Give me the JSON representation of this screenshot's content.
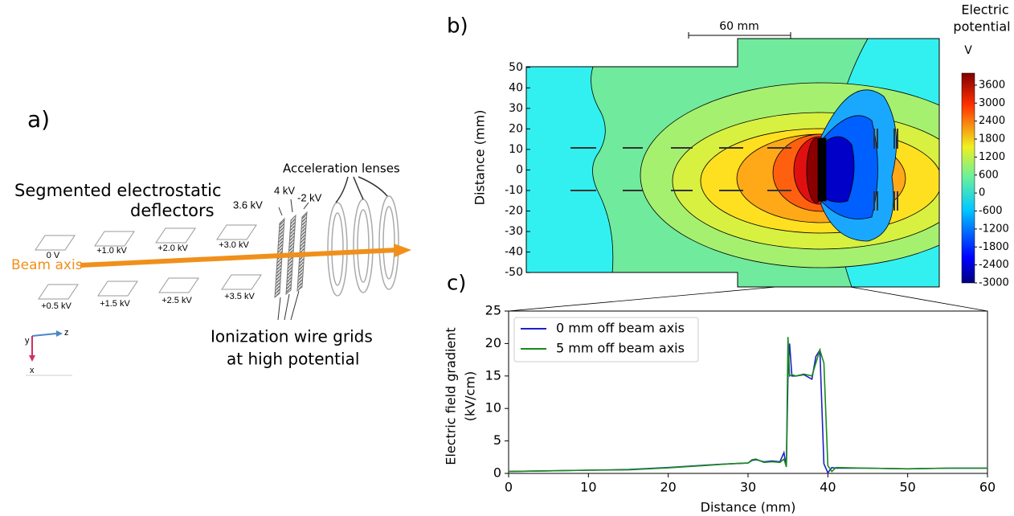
{
  "diagram": {
    "panel_label": "a)",
    "title": [
      "Segmented electrostatic",
      "deflectors"
    ],
    "beam_axis": "Beam axis",
    "deflector_labels": [
      "0 V",
      "+1.0 kV",
      "+2.0 kV",
      "+3.0 kV",
      "+0.5 kV",
      "+1.5 kV",
      "+2.5 kV",
      "+3.5 kV"
    ],
    "grid_labels": [
      "3.6 kV",
      "4 kV",
      "-2 kV"
    ],
    "lenses": "Acceleration lenses",
    "grids": [
      "Ionization wire grids",
      "at high potential"
    ],
    "axes": [
      "y",
      "z",
      "x"
    ]
  },
  "chart_data": [
    {
      "type": "contour",
      "panel_label": "b)",
      "ylabel": "Distance (mm)",
      "ylim": [
        -57,
        64
      ],
      "yticks": [
        -50,
        -40,
        -30,
        -20,
        -10,
        0,
        10,
        20,
        30,
        40,
        50
      ],
      "scale_bar": "60 mm",
      "colorbar": {
        "title": [
          "Electric",
          "potential"
        ],
        "unit": "V",
        "lim": [
          -3000,
          4000
        ],
        "ticks": [
          -3000,
          -2400,
          -1800,
          -1200,
          -600,
          0,
          600,
          1200,
          1800,
          2400,
          3000,
          3600
        ]
      }
    },
    {
      "type": "line",
      "panel_label": "c)",
      "xlabel": "Distance (mm)",
      "ylabel": [
        "Electric field gradient",
        "(kV/cm)"
      ],
      "x": [
        0,
        5,
        10,
        15,
        20,
        25,
        28,
        30,
        30.5,
        31,
        32,
        33,
        34,
        34.5,
        34.8,
        35,
        35.2,
        35.5,
        36,
        37,
        38,
        38.5,
        39,
        39.5,
        40,
        40.5,
        41,
        45,
        50,
        55,
        60
      ],
      "series": [
        {
          "name": "0 mm off beam axis",
          "color": "#1f1fc8",
          "values": [
            0.3,
            0.4,
            0.5,
            0.6,
            0.9,
            1.3,
            1.5,
            1.6,
            2.0,
            2.1,
            1.8,
            1.9,
            1.8,
            3.2,
            1.0,
            15,
            20,
            15,
            15,
            15.2,
            14.5,
            18,
            19,
            1.5,
            0.1,
            0.9,
            0.8,
            0.8,
            0.7,
            0.8,
            0.8
          ]
        },
        {
          "name": "5 mm off beam axis",
          "color": "#1a8a1a",
          "values": [
            0.3,
            0.4,
            0.5,
            0.55,
            0.85,
            1.25,
            1.5,
            1.6,
            2.1,
            2.2,
            1.7,
            1.8,
            1.7,
            2.2,
            1.0,
            21,
            15,
            15.2,
            15,
            15.3,
            15,
            17,
            19,
            17,
            1.2,
            0.3,
            0.9,
            0.8,
            0.7,
            0.8,
            0.8
          ]
        }
      ],
      "xlim": [
        0,
        60
      ],
      "ylim": [
        0,
        25
      ],
      "xticks": [
        0,
        10,
        20,
        30,
        40,
        50,
        60
      ],
      "yticks": [
        0,
        5,
        10,
        15,
        20,
        25
      ]
    }
  ]
}
